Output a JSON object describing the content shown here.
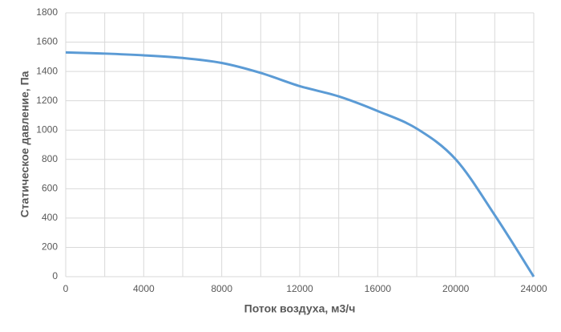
{
  "chart_data": {
    "type": "line",
    "xlabel": "Поток воздуха, м3/ч",
    "ylabel": "Статическое давление, Па",
    "x": [
      0,
      2000,
      4000,
      6000,
      8000,
      10000,
      12000,
      14000,
      16000,
      18000,
      20000,
      22000,
      24000
    ],
    "series": [
      {
        "color": "#5b9bd5",
        "values": [
          1530,
          1522,
          1510,
          1492,
          1458,
          1390,
          1300,
          1230,
          1130,
          1010,
          800,
          420,
          0
        ]
      }
    ],
    "xlim": [
      0,
      24000
    ],
    "xticks": [
      0,
      4000,
      8000,
      12000,
      16000,
      20000,
      24000
    ],
    "ylim": [
      0,
      1800
    ],
    "yticks": [
      0,
      200,
      400,
      600,
      800,
      1000,
      1200,
      1400,
      1600,
      1800
    ],
    "grid": true
  }
}
